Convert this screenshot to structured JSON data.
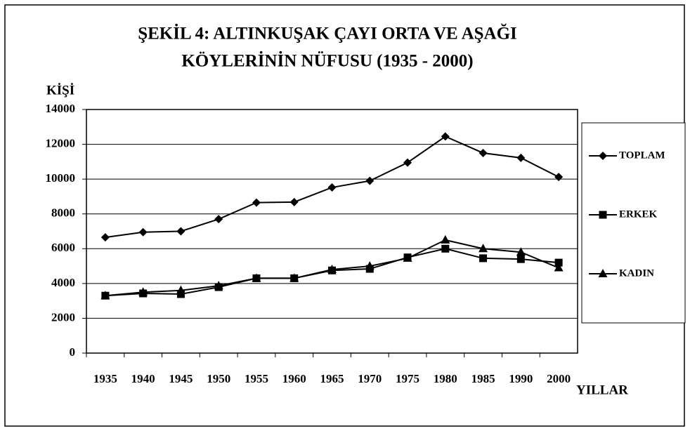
{
  "chart_data": {
    "type": "line",
    "title": [
      "ŞEKİL 4: ALTINKUŞAK ÇAYI ORTA VE AŞAĞI",
      "KÖYLERİNİN NÜFUSU (1935 - 2000)"
    ],
    "y_label": "KİŞİ",
    "x_label": "YILLAR",
    "categories": [
      "1935",
      "1940",
      "1945",
      "1950",
      "1955",
      "1960",
      "1965",
      "1970",
      "1975",
      "1980",
      "1985",
      "1990",
      "2000"
    ],
    "series": [
      {
        "name": "TOPLAM",
        "color": "#000000",
        "marker": "diamond",
        "values": [
          6650,
          6950,
          7000,
          7700,
          8650,
          8680,
          9520,
          9900,
          10950,
          12450,
          11500,
          11220,
          10120
        ]
      },
      {
        "name": "ERKEK",
        "color": "#000000",
        "marker": "square",
        "values": [
          3300,
          3430,
          3390,
          3790,
          4300,
          4300,
          4750,
          4840,
          5500,
          6000,
          5450,
          5400,
          5200
        ]
      },
      {
        "name": "KADIN",
        "color": "#000000",
        "marker": "triangle",
        "values": [
          3300,
          3500,
          3600,
          3870,
          4300,
          4300,
          4800,
          5000,
          5450,
          6500,
          6000,
          5800,
          4900
        ]
      }
    ],
    "ylim": [
      0,
      14000
    ],
    "yticks": [
      0,
      2000,
      4000,
      6000,
      8000,
      10000,
      12000,
      14000
    ],
    "grid": true,
    "legend": "right"
  }
}
